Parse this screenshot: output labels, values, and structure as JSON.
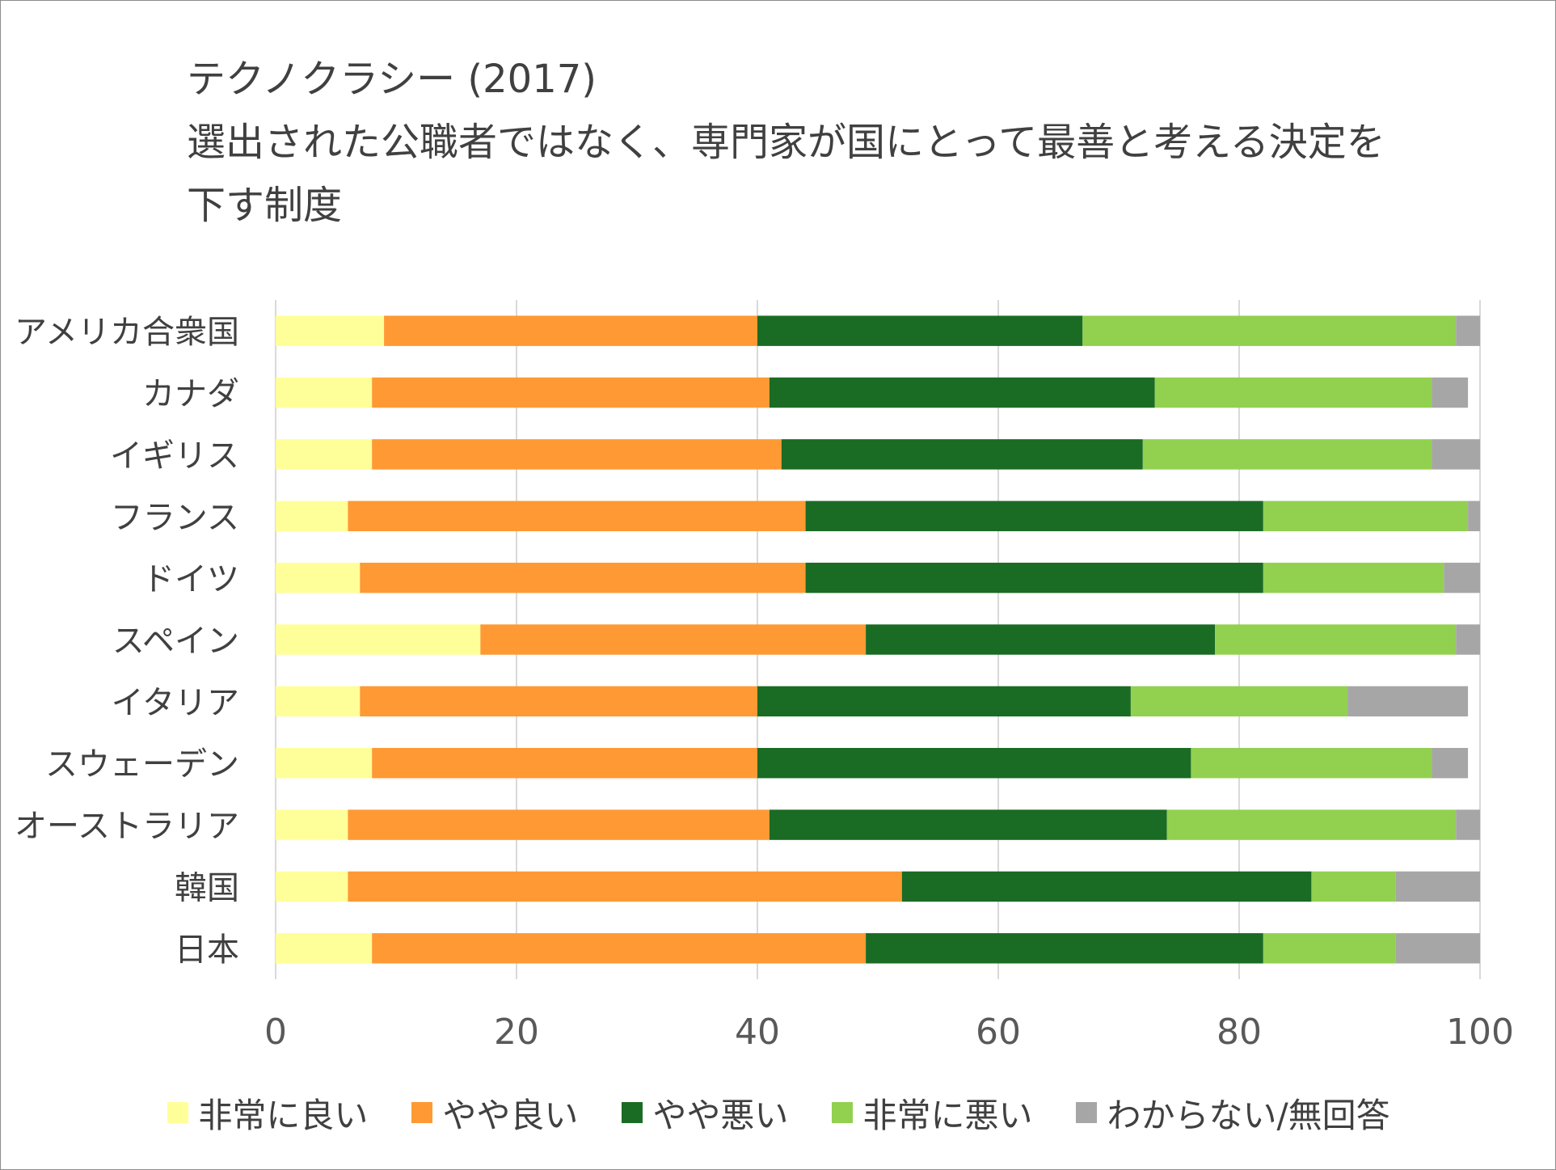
{
  "chart_data": {
    "type": "bar",
    "orientation": "horizontal",
    "stacked": true,
    "title_lines": [
      "テクノクラシー (2017)",
      "選出された公職者ではなく、専門家が国にとって最善と考える決定を",
      "下す制度"
    ],
    "categories": [
      "アメリカ合衆国",
      "カナダ",
      "イギリス",
      "フランス",
      "ドイツ",
      "スペイン",
      "イタリア",
      "スウェーデン",
      "オーストラリア",
      "韓国",
      "日本"
    ],
    "xlim": [
      0,
      100
    ],
    "xticks": [
      "0",
      "20",
      "40",
      "60",
      "80",
      "100"
    ],
    "grid": true,
    "legend_position": "bottom",
    "series": [
      {
        "name": "非常に良い",
        "color": "#ffff99",
        "values": [
          9,
          8,
          8,
          6,
          7,
          17,
          7,
          8,
          6,
          6,
          8
        ]
      },
      {
        "name": "やや良い",
        "color": "#ff9933",
        "values": [
          31,
          33,
          34,
          38,
          37,
          32,
          33,
          32,
          35,
          46,
          41
        ]
      },
      {
        "name": "やや悪い",
        "color": "#1a6b24",
        "values": [
          27,
          32,
          30,
          38,
          38,
          29,
          31,
          36,
          33,
          34,
          33
        ]
      },
      {
        "name": "非常に悪い",
        "color": "#92d050",
        "values": [
          31,
          23,
          24,
          17,
          15,
          20,
          18,
          20,
          24,
          7,
          11
        ]
      },
      {
        "name": "わからない/無回答",
        "color": "#a6a6a6",
        "values": [
          2,
          3,
          4,
          1,
          3,
          2,
          10,
          3,
          2,
          7,
          7
        ]
      }
    ]
  }
}
